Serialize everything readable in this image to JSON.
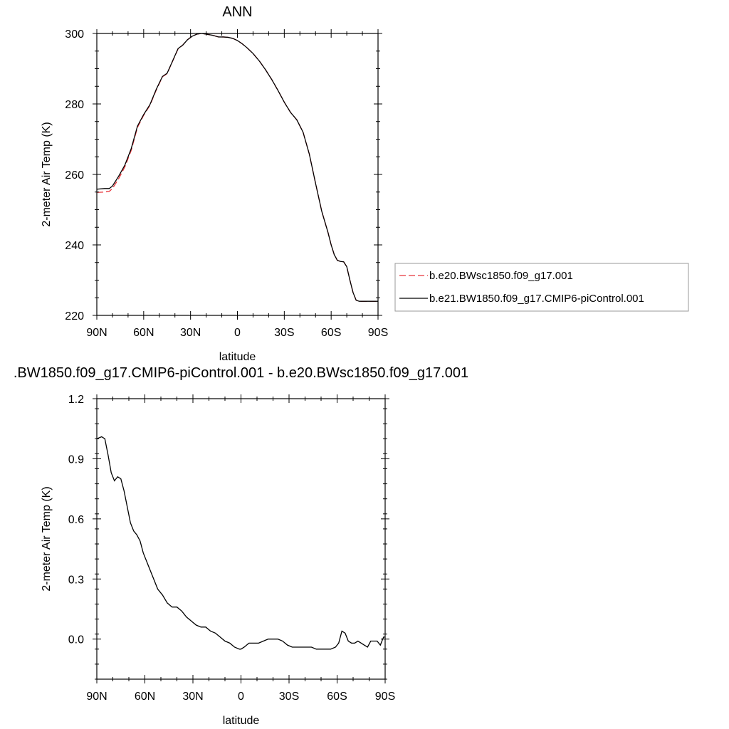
{
  "chart_data": [
    {
      "type": "line",
      "title": "ANN",
      "xlabel": "latitude",
      "ylabel": "2-meter Air Temp (K)",
      "xlim": [
        90,
        -90
      ],
      "ylim": [
        220,
        300
      ],
      "xticks": [
        90,
        60,
        30,
        0,
        -30,
        -60,
        -90
      ],
      "xtick_labels": [
        "90N",
        "60N",
        "30N",
        "0",
        "30S",
        "60S",
        "90S"
      ],
      "yticks": [
        220,
        240,
        260,
        280,
        300
      ],
      "ytick_labels": [
        "220",
        "240",
        "260",
        "280",
        "300"
      ],
      "grid": false,
      "legend_position": "right",
      "series": [
        {
          "name": "b.e20.BWsc1850.f09_g17.001",
          "color": "#e8343a",
          "style": "dashed",
          "x": [
            90,
            85,
            82,
            80,
            76,
            72,
            68,
            64,
            60,
            56,
            52,
            48,
            45,
            42,
            38,
            35,
            32,
            29,
            26,
            23,
            20,
            16,
            12,
            9,
            6,
            3,
            0,
            -3,
            -6,
            -10,
            -14,
            -18,
            -22,
            -26,
            -30,
            -34,
            -38,
            -42,
            -46,
            -50,
            -54,
            -58,
            -60,
            -62,
            -64,
            -66,
            -68,
            -70,
            -72,
            -74,
            -76,
            -78,
            -80,
            -82,
            -84,
            -86,
            -88,
            -90
          ],
          "y": [
            254.9,
            255.0,
            255.2,
            256.0,
            258.8,
            262.2,
            266.8,
            273.3,
            276.8,
            279.6,
            283.9,
            287.7,
            288.6,
            291.6,
            295.6,
            296.7,
            298.2,
            299.2,
            299.8,
            300.0,
            299.8,
            299.5,
            299.0,
            299.0,
            298.9,
            298.6,
            298.0,
            297.1,
            296.0,
            294.3,
            292.2,
            289.7,
            286.9,
            283.8,
            280.5,
            277.6,
            275.5,
            272.0,
            265.8,
            257.5,
            249.5,
            243.5,
            240.0,
            237.2,
            235.6,
            235.3,
            235.2,
            233.8,
            230.0,
            226.5,
            224.3,
            224.0,
            224.0,
            224.0,
            224.0,
            224.0,
            224.0,
            224.0
          ]
        },
        {
          "name": "b.e21.BW1850.f09_g17.CMIP6-piControl.001",
          "color": "#000000",
          "style": "solid",
          "x": [
            90,
            85,
            82,
            80,
            76,
            72,
            68,
            64,
            60,
            56,
            52,
            48,
            45,
            42,
            38,
            35,
            32,
            29,
            26,
            23,
            20,
            16,
            12,
            9,
            6,
            3,
            0,
            -3,
            -6,
            -10,
            -14,
            -18,
            -22,
            -26,
            -30,
            -34,
            -38,
            -42,
            -46,
            -50,
            -54,
            -58,
            -60,
            -62,
            -64,
            -66,
            -68,
            -70,
            -72,
            -74,
            -76,
            -78,
            -80,
            -82,
            -84,
            -86,
            -88,
            -90
          ],
          "y": [
            255.8,
            256.0,
            256.0,
            256.7,
            259.5,
            262.7,
            267.3,
            273.7,
            277.0,
            279.8,
            284.1,
            287.8,
            288.7,
            291.7,
            295.7,
            296.7,
            298.2,
            299.2,
            299.8,
            300.0,
            299.8,
            299.5,
            299.0,
            299.0,
            298.9,
            298.6,
            298.0,
            297.1,
            296.0,
            294.3,
            292.2,
            289.7,
            286.9,
            283.8,
            280.5,
            277.6,
            275.5,
            272.0,
            265.8,
            257.5,
            249.5,
            243.5,
            240.0,
            237.2,
            235.6,
            235.3,
            235.2,
            233.8,
            230.0,
            226.5,
            224.3,
            224.0,
            224.0,
            224.0,
            224.0,
            224.0,
            224.0,
            224.0
          ]
        }
      ],
      "legend": {
        "entries": [
          {
            "label": "b.e20.BWsc1850.f09_g17.001"
          },
          {
            "label": "b.e21.BW1850.f09_g17.CMIP6-piControl.001"
          }
        ]
      }
    },
    {
      "type": "line",
      "title": ".BW1850.f09_g17.CMIP6-piControl.001 - b.e20.BWsc1850.f09_g17.001",
      "xlabel": "latitude",
      "ylabel": "2-meter Air Temp (K)",
      "xlim": [
        90,
        -90
      ],
      "ylim": [
        -0.2,
        1.2
      ],
      "xticks": [
        90,
        60,
        30,
        0,
        -30,
        -60,
        -90
      ],
      "xtick_labels": [
        "90N",
        "60N",
        "30N",
        "0",
        "30S",
        "60S",
        "90S"
      ],
      "yticks": [
        0.0,
        0.3,
        0.6,
        0.9,
        1.2
      ],
      "ytick_labels": [
        "0.0",
        "0.3",
        "0.6",
        "0.9",
        "1.2"
      ],
      "grid": false,
      "series": [
        {
          "color": "#000000",
          "style": "solid",
          "x": [
            90,
            87,
            85,
            83,
            81,
            79,
            77,
            75,
            73,
            71,
            69,
            67,
            65,
            63,
            61,
            58,
            55,
            52,
            49,
            46,
            43,
            40,
            37,
            34,
            31,
            28,
            25,
            22,
            19,
            16,
            13,
            10,
            7,
            4,
            1,
            0,
            -2,
            -5,
            -8,
            -11,
            -14,
            -17,
            -20,
            -23,
            -26,
            -29,
            -32,
            -35,
            -38,
            -41,
            -44,
            -47,
            -50,
            -53,
            -56,
            -59,
            -61,
            -63,
            -65,
            -67,
            -69,
            -71,
            -73,
            -75,
            -77,
            -79,
            -81,
            -83,
            -85,
            -87,
            -89,
            -90
          ],
          "y": [
            1.0,
            1.01,
            1.0,
            0.92,
            0.83,
            0.79,
            0.81,
            0.8,
            0.74,
            0.66,
            0.58,
            0.54,
            0.52,
            0.49,
            0.43,
            0.37,
            0.31,
            0.25,
            0.22,
            0.18,
            0.16,
            0.16,
            0.14,
            0.11,
            0.09,
            0.07,
            0.06,
            0.06,
            0.04,
            0.03,
            0.01,
            -0.01,
            -0.02,
            -0.04,
            -0.05,
            -0.05,
            -0.04,
            -0.02,
            -0.02,
            -0.02,
            -0.01,
            0.0,
            0.0,
            0.0,
            -0.01,
            -0.03,
            -0.04,
            -0.04,
            -0.04,
            -0.04,
            -0.04,
            -0.05,
            -0.05,
            -0.05,
            -0.05,
            -0.04,
            -0.02,
            0.04,
            0.03,
            -0.01,
            -0.02,
            -0.02,
            -0.01,
            -0.02,
            -0.03,
            -0.04,
            -0.01,
            -0.01,
            -0.01,
            -0.03,
            0.01,
            0.01
          ]
        }
      ]
    }
  ]
}
